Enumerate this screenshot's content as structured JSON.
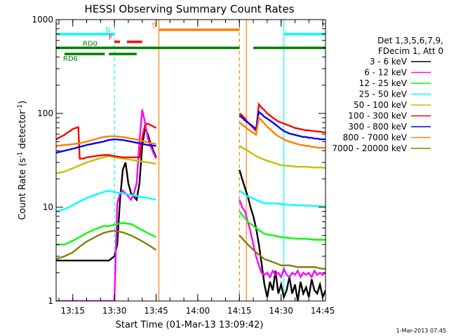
{
  "chart_data": {
    "type": "line",
    "title": "HESSI Observing Summary Count Rates",
    "xlabel": "Start Time (01-Mar-13 13:09:42)",
    "ylabel_main": "Count Rate (s",
    "ylabel_sup1": "-1",
    "ylabel_mid": " detector",
    "ylabel_sup2": "-1",
    "ylabel_end": ")",
    "y_scale": "log",
    "ylim": [
      1,
      1000
    ],
    "xlim_min": [
      789,
      886
    ],
    "y_ticks": [
      {
        "value": 1,
        "label": "1"
      },
      {
        "value": 10,
        "label": "10"
      },
      {
        "value": 100,
        "label": "100"
      },
      {
        "value": 1000,
        "label": "1000"
      }
    ],
    "x_ticks": [
      {
        "value": 795,
        "label": "13:15"
      },
      {
        "value": 810,
        "label": "13:30"
      },
      {
        "value": 825,
        "label": "13:45"
      },
      {
        "value": 840,
        "label": "14:00"
      },
      {
        "value": 855,
        "label": "14:15"
      },
      {
        "value": 870,
        "label": "14:30"
      },
      {
        "value": 885,
        "label": "14:45"
      }
    ],
    "legend_header": [
      "Det 1,3,5,6,7,9,",
      "FDecim 1, Att 0"
    ],
    "legend_placement": "right",
    "series": [
      {
        "name": "3 - 6 keV",
        "color": "#000000",
        "x": [
          789,
          792,
          795,
          797.5,
          800,
          803,
          806,
          808,
          810,
          811,
          812,
          813,
          814,
          815,
          816,
          817,
          818,
          819,
          820,
          821,
          822,
          823,
          824,
          825,
          855,
          856,
          857,
          858,
          859,
          860,
          861,
          862,
          863,
          864,
          865,
          866,
          867,
          868,
          869,
          870,
          871,
          872,
          873,
          874,
          875,
          876,
          877,
          878,
          879,
          880,
          881,
          882,
          883,
          884,
          885,
          886
        ],
        "y": [
          2.7,
          2.7,
          2.7,
          2.7,
          2.7,
          2.7,
          2.7,
          2.7,
          3,
          4,
          12,
          25,
          30,
          18,
          14,
          13,
          12,
          18,
          45,
          70,
          60,
          48,
          40,
          34,
          25,
          20,
          16,
          13,
          10,
          8,
          6,
          4,
          2.5,
          1.5,
          1.1,
          1.6,
          1.3,
          2.1,
          1.2,
          1.5,
          1.1,
          1.3,
          1.8,
          1.2,
          1.5,
          1,
          1.6,
          1.2,
          1.4,
          1.1,
          1.7,
          1.3,
          1.2,
          1.5,
          1.1,
          1.3
        ]
      },
      {
        "name": "6 - 12 keV",
        "color": "#ff00ff",
        "x": [
          789,
          792,
          795,
          797.5,
          800,
          803,
          806,
          808,
          810,
          811,
          812,
          813,
          814,
          815,
          816,
          817,
          818,
          819,
          820,
          821,
          822,
          823,
          824,
          825,
          855,
          856,
          857,
          858,
          859,
          860,
          861,
          862,
          863,
          864,
          865,
          866,
          867,
          868,
          869,
          870,
          871,
          872,
          873,
          874,
          875,
          876,
          877,
          878,
          879,
          880,
          881,
          882,
          883,
          884,
          885,
          886
        ],
        "y": [
          1,
          1,
          1,
          1,
          1,
          1,
          1,
          1,
          1,
          11,
          14,
          15,
          14,
          13,
          12,
          14,
          18,
          50,
          110,
          80,
          55,
          45,
          38,
          33,
          12,
          10,
          9,
          7,
          5.5,
          4,
          3,
          2.4,
          2,
          1.9,
          2,
          1.8,
          2.1,
          1.9,
          2,
          1.8,
          2.2,
          1.9,
          1.8,
          2,
          1.9,
          2.1,
          1.8,
          2,
          1.9,
          2,
          1.8,
          2.1,
          1.9,
          2,
          1.9,
          2
        ]
      },
      {
        "name": "12 - 25 keV",
        "color": "#00ff00",
        "x": [
          789,
          792,
          795,
          797.5,
          800,
          803,
          806,
          808,
          810,
          813,
          816,
          819,
          822,
          825,
          855,
          858,
          861,
          864,
          867,
          870,
          873,
          876,
          879,
          882,
          885,
          886
        ],
        "y": [
          4,
          4,
          4.4,
          4.8,
          5.3,
          5.8,
          6.3,
          6.3,
          6.5,
          6.8,
          6.6,
          5.9,
          5.3,
          4.8,
          9,
          7,
          6,
          5.2,
          5,
          4.8,
          4.7,
          4.6,
          4.6,
          4.5,
          4.5,
          4.5
        ]
      },
      {
        "name": "25 - 50 keV",
        "color": "#00ffff",
        "x": [
          789,
          792,
          795,
          797.5,
          800,
          803,
          806,
          808,
          810,
          813,
          816,
          819,
          822,
          825,
          855,
          858,
          861,
          864,
          867,
          870,
          873,
          876,
          879,
          882,
          885,
          886
        ],
        "y": [
          9,
          9.5,
          10.5,
          11.5,
          12.5,
          13.5,
          14.5,
          15,
          14.5,
          14,
          13.5,
          13,
          12.5,
          12,
          15,
          13,
          12,
          11,
          11,
          10.8,
          10.6,
          10.5,
          10.4,
          10.3,
          10.2,
          10.2
        ]
      },
      {
        "name": "50 - 100 keV",
        "color": "#c0c000",
        "x": [
          789,
          792,
          795,
          797.5,
          800,
          803,
          806,
          808,
          810,
          813,
          816,
          819,
          822,
          825,
          855,
          858,
          861,
          864,
          867,
          870,
          873,
          876,
          879,
          882,
          885,
          886
        ],
        "y": [
          23,
          24,
          26,
          28,
          30,
          32,
          34,
          35,
          34,
          33,
          32,
          31,
          30,
          29,
          45,
          40,
          35,
          32,
          30,
          28,
          27.5,
          27,
          27,
          26.5,
          26.5,
          26
        ]
      },
      {
        "name": "100 - 300 keV",
        "color": "#ff0000",
        "x": [
          789,
          790,
          791,
          792,
          793,
          794,
          795,
          796,
          797,
          797.5,
          798,
          799,
          800,
          803,
          806,
          808,
          810,
          813,
          816,
          819,
          820,
          821,
          822,
          825,
          855,
          856,
          857,
          858,
          859,
          860,
          861,
          862,
          863,
          864,
          865,
          866,
          867,
          868,
          869,
          870,
          871,
          872,
          873,
          874,
          875,
          876,
          877,
          878,
          879,
          880,
          881,
          882,
          883,
          884,
          885,
          886
        ],
        "y": [
          53,
          55,
          57,
          59,
          62,
          65,
          68,
          70,
          71,
          33,
          33,
          33,
          34,
          35,
          36,
          36,
          35,
          34,
          34,
          34,
          55,
          75,
          78,
          70,
          100,
          95,
          88,
          80,
          75,
          70,
          65,
          125,
          115,
          108,
          100,
          95,
          90,
          86,
          82,
          80,
          78,
          76,
          74,
          72,
          70,
          69,
          68,
          67,
          66,
          66,
          65,
          65,
          64,
          64,
          63,
          63
        ]
      },
      {
        "name": "300 - 800 keV",
        "color": "#0000ff",
        "x": [
          789,
          792,
          795,
          797.5,
          800,
          803,
          806,
          808,
          810,
          813,
          816,
          819,
          822,
          825,
          855,
          856,
          857,
          858,
          859,
          860,
          861,
          862,
          863,
          864,
          865,
          866,
          867,
          868,
          869,
          870,
          871,
          872,
          873,
          874,
          875,
          876,
          877,
          878,
          879,
          880,
          881,
          882,
          883,
          884,
          885,
          886
        ],
        "y": [
          38,
          40,
          42,
          44,
          46,
          48,
          50,
          52,
          53,
          52,
          50,
          48,
          46,
          45,
          95,
          90,
          84,
          80,
          76,
          72,
          68,
          104,
          98,
          92,
          88,
          84,
          80,
          76,
          72,
          68,
          65,
          63,
          61,
          60,
          59,
          58,
          57,
          56,
          56,
          55,
          55,
          54,
          54,
          53,
          53,
          53
        ]
      },
      {
        "name": "800 - 7000 keV",
        "color": "#ff8000",
        "x": [
          789,
          792,
          795,
          797.5,
          800,
          803,
          806,
          808,
          810,
          813,
          816,
          819,
          822,
          825,
          855,
          856,
          857,
          858,
          859,
          860,
          861,
          862,
          863,
          864,
          865,
          866,
          867,
          868,
          869,
          870,
          871,
          872,
          873,
          874,
          875,
          876,
          877,
          878,
          879,
          880,
          881,
          882,
          883,
          884,
          885,
          886
        ],
        "y": [
          45,
          46,
          47,
          48,
          50,
          53,
          56,
          57,
          57,
          56,
          54,
          52,
          49,
          47,
          80,
          76,
          72,
          68,
          65,
          62,
          59,
          90,
          84,
          78,
          72,
          68,
          64,
          60,
          57,
          55,
          53,
          51,
          50,
          49,
          48,
          47,
          46,
          46,
          45,
          45,
          44,
          44,
          43,
          43,
          43,
          43
        ]
      },
      {
        "name": "7000 - 20000 keV",
        "color": "#808000",
        "x": [
          789,
          792,
          795,
          797.5,
          800,
          803,
          806,
          808,
          810,
          813,
          816,
          819,
          822,
          825,
          855,
          858,
          861,
          864,
          867,
          870,
          873,
          876,
          879,
          882,
          885,
          886
        ],
        "y": [
          2.8,
          3,
          3.3,
          3.8,
          4.3,
          4.8,
          5.3,
          5.5,
          5.6,
          5.4,
          5,
          4.5,
          4,
          3.5,
          5,
          4,
          3.3,
          2.8,
          2.6,
          2.4,
          2.4,
          2.3,
          2.3,
          2.3,
          2.2,
          2.2
        ]
      }
    ],
    "state_bars": [
      {
        "label": "N",
        "color": "#00ffff",
        "y": 700,
        "segments": [
          [
            789,
            810
          ],
          [
            871,
            886
          ]
        ]
      },
      {
        "label": "S",
        "color": "#ff8000",
        "y": 780,
        "segments": [
          [
            826,
            855
          ]
        ]
      },
      {
        "label": "F",
        "color": "#ff0000",
        "y": 580,
        "segments": [
          [
            810,
            812
          ],
          [
            814.5,
            820
          ]
        ]
      },
      {
        "label": "RD0",
        "color": "#008000",
        "y": 500,
        "segments": [
          [
            789,
            855
          ],
          [
            860,
            886
          ]
        ]
      },
      {
        "label": "RD6",
        "color": "#008000",
        "y": 430,
        "segments": [
          [
            792,
            806.5
          ],
          [
            808,
            818
          ]
        ]
      }
    ],
    "vertical_markers": [
      {
        "x": 810,
        "color": "#00ffff",
        "dashed": true
      },
      {
        "x": 826,
        "color": "#ff8000",
        "dashed": false
      },
      {
        "x": 855,
        "color": "#ff8000",
        "dashed": true
      },
      {
        "x": 857.5,
        "color": "#ff8000",
        "dashed": false
      },
      {
        "x": 871,
        "color": "#00ffff",
        "dashed": false
      },
      {
        "x": 886,
        "color": "#00ffff",
        "dashed": true
      }
    ],
    "timestamp": "1-Mar-2013 07:45"
  }
}
